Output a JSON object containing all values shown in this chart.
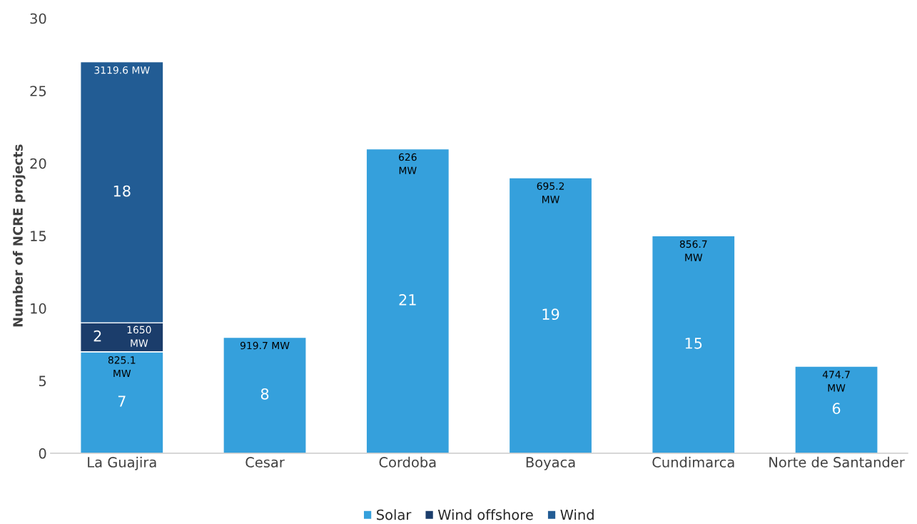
{
  "chart_data": {
    "type": "bar",
    "stacked": true,
    "ylabel": "Number of NCRE projects",
    "categories": [
      "La Guajira",
      "Cesar",
      "Cordoba",
      "Boyaca",
      "Cundimarca",
      "Norte de Santander"
    ],
    "series": [
      {
        "name": "Solar",
        "color": "#35a0dc",
        "values": [
          7,
          8,
          21,
          19,
          15,
          6
        ]
      },
      {
        "name": "Wind offshore",
        "color": "#1b3d6b",
        "values": [
          2,
          null,
          null,
          null,
          null,
          null
        ]
      },
      {
        "name": "Wind",
        "color": "#225c94",
        "values": [
          18,
          null,
          null,
          null,
          null,
          null
        ]
      }
    ],
    "ylim": [
      0,
      30
    ],
    "yticks": [
      0,
      5,
      10,
      15,
      20,
      25,
      30
    ],
    "grid": false,
    "legend": "bottom",
    "data_labels": true,
    "annotations": [
      "825.1\nMW",
      "919.7 MW",
      "626\nMW",
      "695.2\nMW",
      "856.7\nMW",
      "474.7\nMW",
      "1650\nMW",
      "3119.6 MW"
    ]
  }
}
